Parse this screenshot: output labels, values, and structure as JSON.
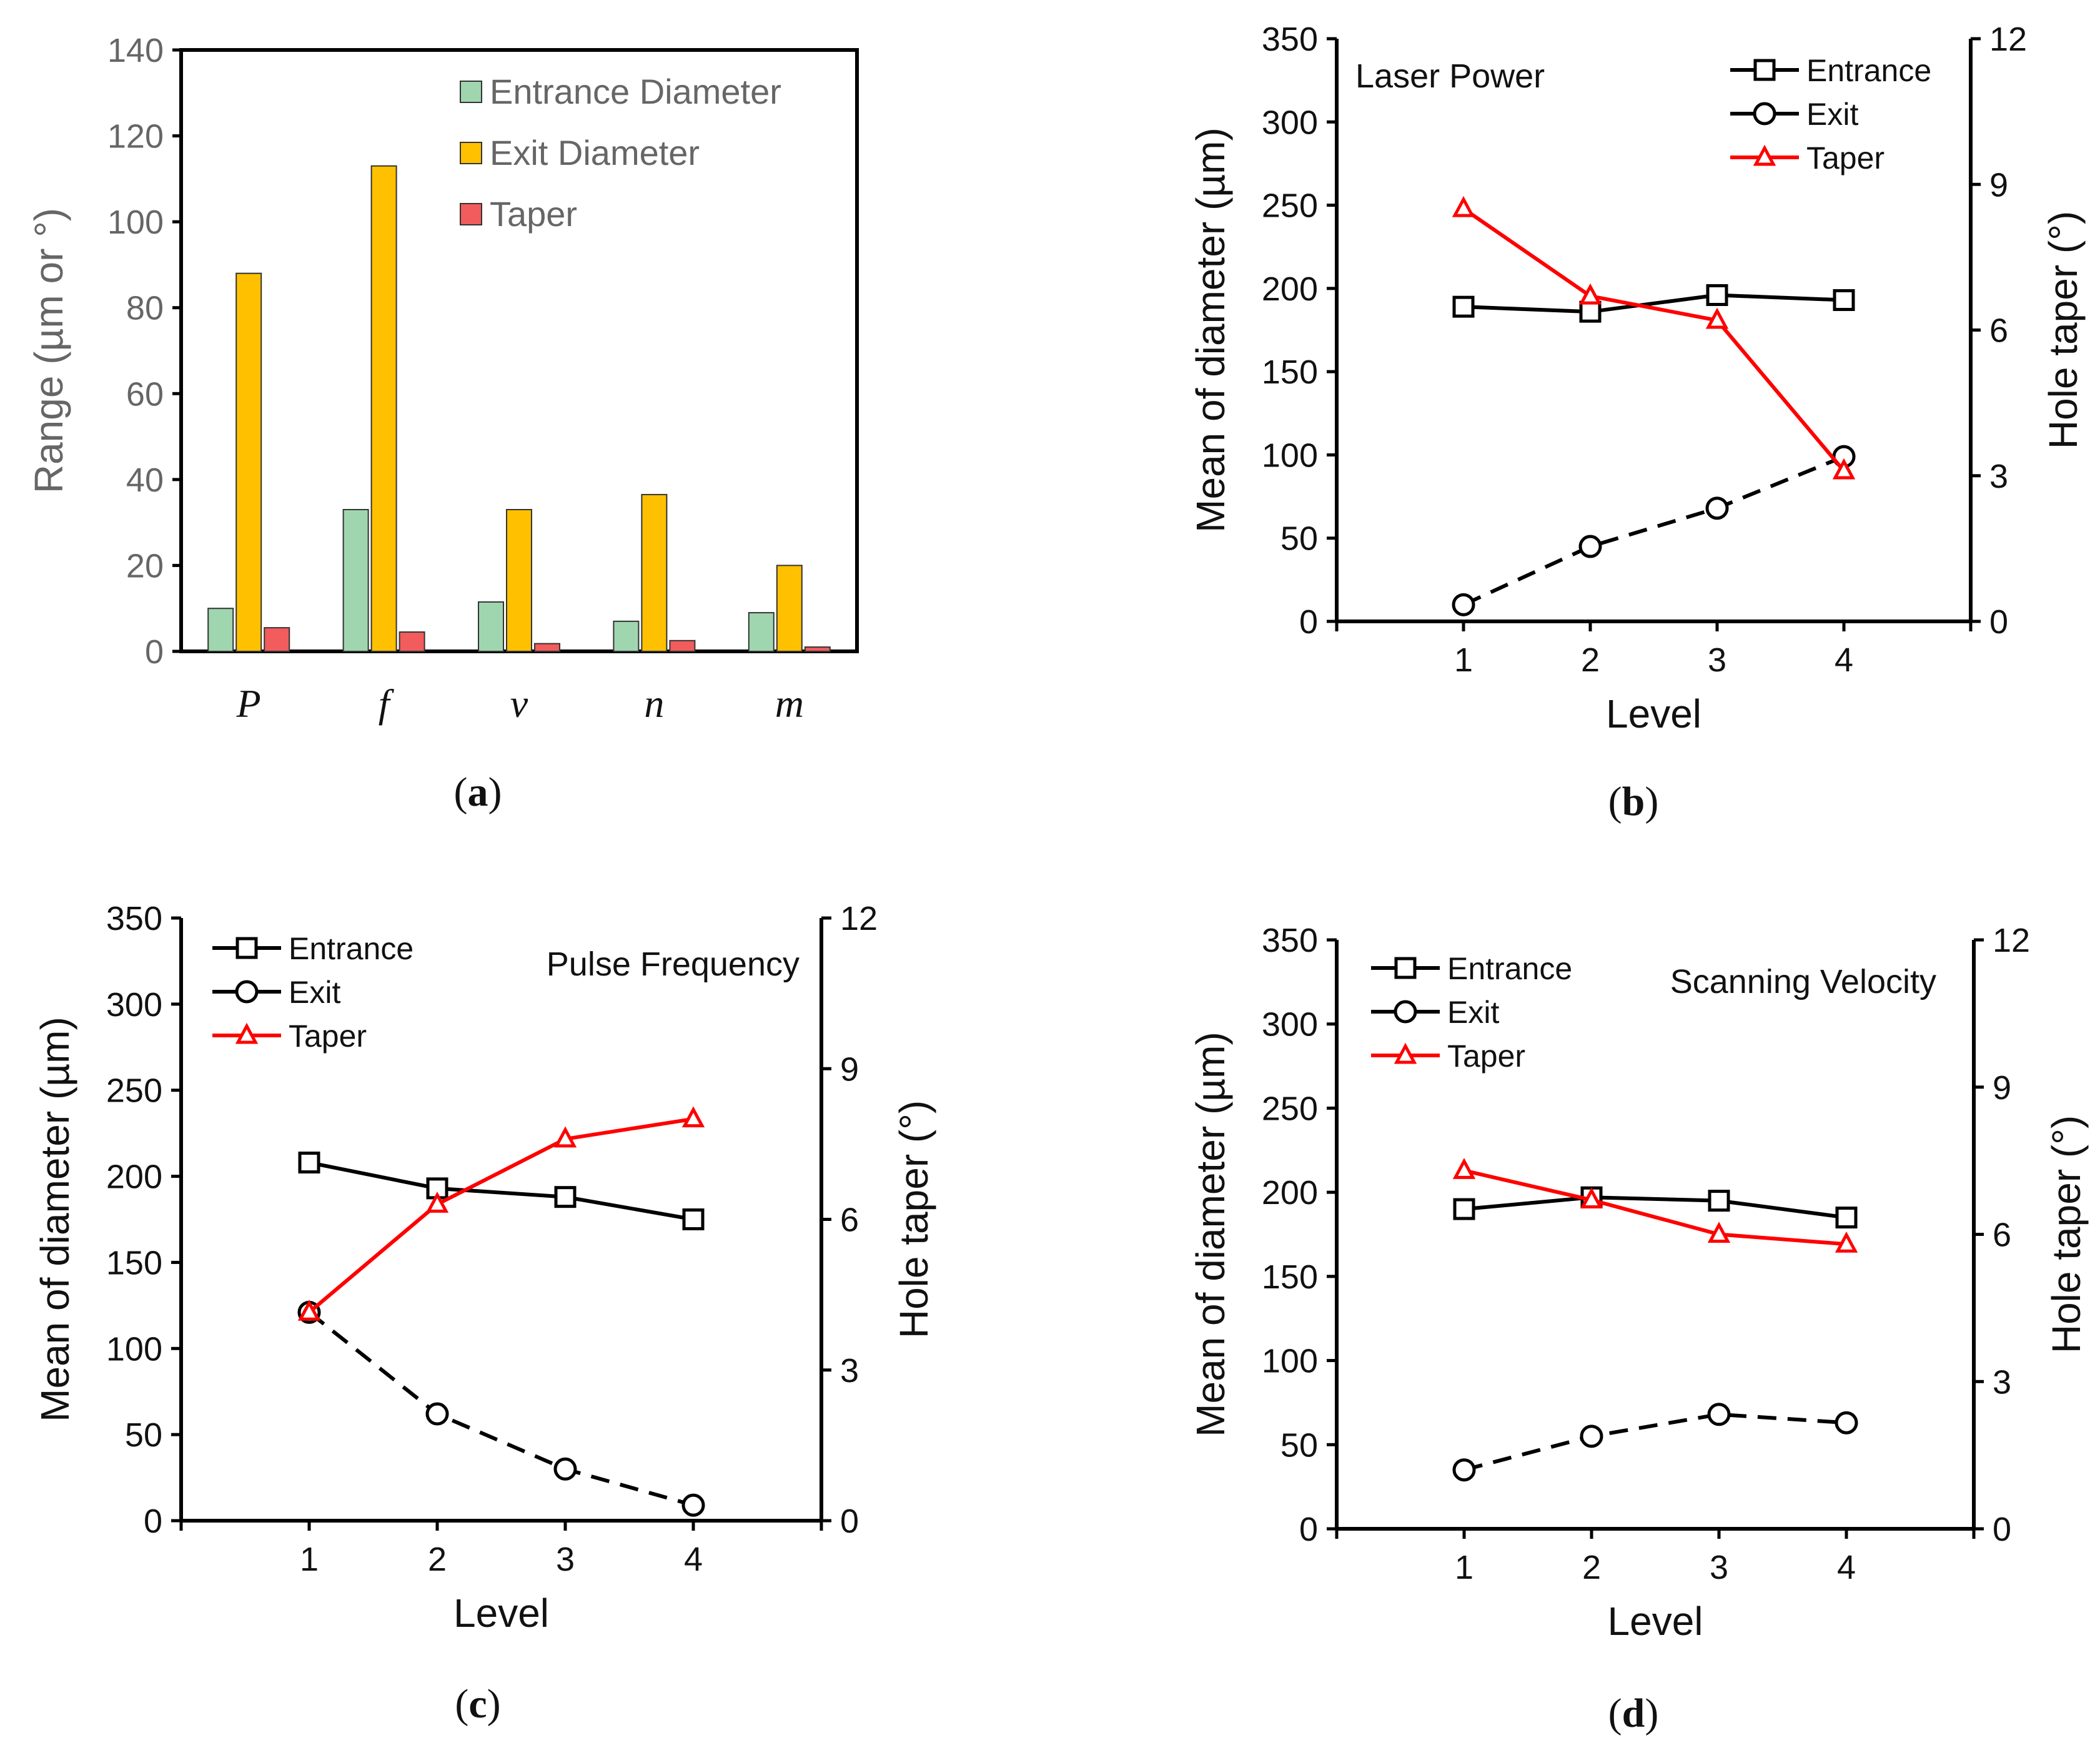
{
  "colors": {
    "entrance_bar": "#9fd6b0",
    "exit_bar": "#ffc000",
    "taper_bar": "#f25c5c",
    "entrance_line": "#000000",
    "exit_line": "#000000",
    "taper_line": "#ff0000"
  },
  "panel_labels": {
    "a": {
      "open": "(",
      "letter": "a",
      "close": ")"
    },
    "b": {
      "open": "(",
      "letter": "b",
      "close": ")"
    },
    "c": {
      "open": "(",
      "letter": "c",
      "close": ")"
    },
    "d": {
      "open": "(",
      "letter": "d",
      "close": ")"
    }
  },
  "chart_data": [
    {
      "id": "a",
      "type": "bar",
      "title": "",
      "categories": [
        "P",
        "f",
        "v",
        "n",
        "m"
      ],
      "series": [
        {
          "name": "Entrance Diameter",
          "values": [
            10,
            33,
            11.5,
            7,
            9
          ]
        },
        {
          "name": "Exit Diameter",
          "values": [
            88,
            113,
            33,
            36.5,
            20
          ]
        },
        {
          "name": "Taper",
          "values": [
            5.5,
            4.5,
            1.8,
            2.5,
            1
          ]
        }
      ],
      "xlabel": "",
      "ylabel": "Range (µm or °)",
      "ylim": [
        0,
        140
      ],
      "yticks": [
        "0",
        "20",
        "40",
        "60",
        "80",
        "100",
        "120",
        "140"
      ],
      "legend_position": "top-right"
    },
    {
      "id": "b",
      "type": "line",
      "title": "Laser Power",
      "x": [
        1,
        2,
        3,
        4
      ],
      "xticks": [
        "1",
        "2",
        "3",
        "4"
      ],
      "xlim": [
        0,
        5
      ],
      "series": [
        {
          "name": "Entrance",
          "axis": "left",
          "values": [
            189,
            186,
            196,
            193
          ]
        },
        {
          "name": "Exit",
          "axis": "left",
          "values": [
            10,
            45,
            68,
            99
          ]
        },
        {
          "name": "Taper",
          "axis": "right",
          "values": [
            8.5,
            6.7,
            6.2,
            3.1
          ]
        }
      ],
      "xlabel": "Level",
      "ylabel": "Mean of diameter (µm)",
      "y2label": "Hole taper (°)",
      "ylim": [
        0,
        350
      ],
      "yticks": [
        "0",
        "50",
        "100",
        "150",
        "200",
        "250",
        "300",
        "350"
      ],
      "y2lim": [
        0,
        12
      ],
      "y2ticks": [
        "0",
        "3",
        "6",
        "9",
        "12"
      ],
      "legend_position": "top-right"
    },
    {
      "id": "c",
      "type": "line",
      "title": "Pulse Frequency",
      "x": [
        1,
        2,
        3,
        4
      ],
      "xticks": [
        "1",
        "2",
        "3",
        "4"
      ],
      "xlim": [
        0,
        5
      ],
      "series": [
        {
          "name": "Entrance",
          "axis": "left",
          "values": [
            208,
            193,
            188,
            175
          ]
        },
        {
          "name": "Exit",
          "axis": "left",
          "values": [
            121,
            62,
            30,
            9
          ]
        },
        {
          "name": "Taper",
          "axis": "right",
          "values": [
            4.15,
            6.3,
            7.6,
            8.0
          ]
        }
      ],
      "xlabel": "Level",
      "ylabel": "Mean of diameter (µm)",
      "y2label": "Hole taper (°)",
      "ylim": [
        0,
        350
      ],
      "yticks": [
        "0",
        "50",
        "100",
        "150",
        "200",
        "250",
        "300",
        "350"
      ],
      "y2lim": [
        0,
        12
      ],
      "y2ticks": [
        "0",
        "3",
        "6",
        "9",
        "12"
      ],
      "legend_position": "top-left"
    },
    {
      "id": "d",
      "type": "line",
      "title": "Scanning Velocity",
      "x": [
        1,
        2,
        3,
        4
      ],
      "xticks": [
        "1",
        "2",
        "3",
        "4"
      ],
      "xlim": [
        0,
        5
      ],
      "series": [
        {
          "name": "Entrance",
          "axis": "left",
          "values": [
            190,
            197,
            195,
            185
          ]
        },
        {
          "name": "Exit",
          "axis": "left",
          "values": [
            35,
            55,
            68,
            63
          ]
        },
        {
          "name": "Taper",
          "axis": "right",
          "values": [
            7.3,
            6.7,
            6.0,
            5.8
          ]
        }
      ],
      "xlabel": "Level",
      "ylabel": "Mean of diameter (µm)",
      "y2label": "Hole taper (°)",
      "ylim": [
        0,
        350
      ],
      "yticks": [
        "0",
        "50",
        "100",
        "150",
        "200",
        "250",
        "300",
        "350"
      ],
      "y2lim": [
        0,
        12
      ],
      "y2ticks": [
        "0",
        "3",
        "6",
        "9",
        "12"
      ],
      "legend_position": "top-left"
    }
  ]
}
